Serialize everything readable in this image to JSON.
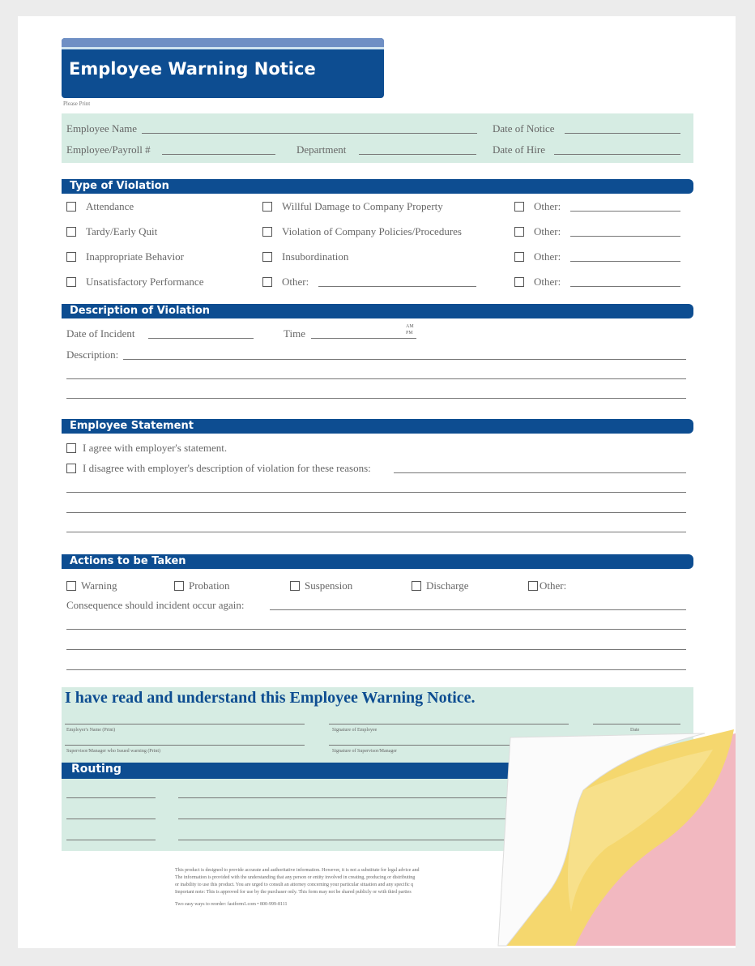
{
  "title": "Employee Warning Notice",
  "please_print": "Please Print",
  "header_fields": {
    "employee_name": "Employee Name",
    "date_of_notice": "Date of Notice",
    "payroll": "Employee/Payroll #",
    "department": "Department",
    "date_of_hire": "Date of Hire",
    "date_slash": "/"
  },
  "violation": {
    "heading": "Type of Violation",
    "col1": [
      "Attendance",
      "Tardy/Early Quit",
      "Inappropriate Behavior",
      "Unsatisfactory Performance"
    ],
    "col2": [
      "Willful Damage to Company Property",
      "Violation of Company Policies/Procedures",
      "Insubordination",
      "Other:"
    ],
    "col3": [
      "Other:",
      "Other:",
      "Other:",
      "Other:"
    ]
  },
  "description": {
    "heading": "Description of Violation",
    "date_of_incident": "Date of Incident",
    "time": "Time",
    "colon": ":",
    "am": "AM",
    "pm": "PM",
    "description": "Description:"
  },
  "statement": {
    "heading": "Employee Statement",
    "agree": "I agree with employer's statement.",
    "disagree": "I disagree with employer's description of violation for these reasons:"
  },
  "actions": {
    "heading": "Actions to be Taken",
    "options": [
      "Warning",
      "Probation",
      "Suspension",
      "Discharge",
      "Other:"
    ],
    "consequence": "Consequence should incident occur again:"
  },
  "acknowledge": {
    "text": "I have read and understand this Employee Warning Notice.",
    "employer_name": "Employer's Name (Print)",
    "signature_employee": "Signature of Employee",
    "date": "Date",
    "supervisor_name": "Supervisor/Manager who Issued warning (Print)",
    "signature_supervisor": "Signature of Supervisor/Manager"
  },
  "routing": {
    "heading": "Routing"
  },
  "footer": {
    "lines": [
      "This product is designed to provide accurate and authoritative information. However, it is not a substitute for legal advice and",
      "The information is provided with the understanding that any person or entity involved in creating, producing or distributing",
      "or inability to use this product. You are urged to consult an attorney concerning your particular situation and any specific q",
      "Important note: This is approved for use by the purchaser only. This form may not be shared publicly or with third parties"
    ],
    "order": "Two easy ways to reorder: fastform1.com • 800-999-8111"
  },
  "colors": {
    "brand_blue": "#0d4d91",
    "light_blue": "#6f8fc4",
    "green_fill": "#d6ece3",
    "copy_yellow": "#f5d76e",
    "copy_pink": "#f2b8c0"
  }
}
